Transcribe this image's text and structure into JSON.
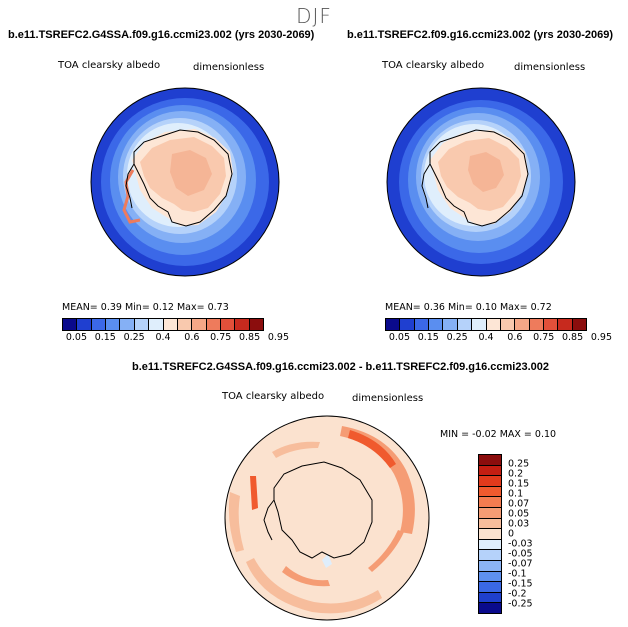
{
  "season": "DJF",
  "panels": [
    {
      "title": "b.e11.TSREFC2.G4SSA.f09.g16.ccmi23.002 (yrs 2030-2069)",
      "variable": "TOA clearsky albedo",
      "units": "dimensionless",
      "stats": "MEAN=   0.39  Min=   0.12  Max=   0.73"
    },
    {
      "title": "b.e11.TSREFC2.f09.g16.ccmi23.002 (yrs 2030-2069)",
      "variable": "TOA clearsky albedo",
      "units": "dimensionless",
      "stats": "MEAN=   0.36  Min=   0.10  Max=   0.72"
    }
  ],
  "colorbar_labels": [
    "0.05",
    "0.15",
    "0.25",
    "0.4",
    "0.6",
    "0.75",
    "0.85",
    "0.95"
  ],
  "colorbar_colors": [
    "#0a0a8c",
    "#1f3fd0",
    "#3b68e8",
    "#5a8ef0",
    "#85b0f5",
    "#b5d2fa",
    "#dfeefc",
    "#fde6d6",
    "#f9c9ae",
    "#f5a787",
    "#ee7b5c",
    "#e2503a",
    "#c72a1e",
    "#8b0d0d"
  ],
  "difference": {
    "title": "b.e11.TSREFC2.G4SSA.f09.g16.ccmi23.002 - b.e11.TSREFC2.f09.g16.ccmi23.002",
    "variable": "TOA clearsky albedo",
    "units": "dimensionless",
    "stats": "MIN =   -0.02  MAX =   0.10",
    "colorbar_labels": [
      "0.25",
      "0.2",
      "0.15",
      "0.1",
      "0.07",
      "0.05",
      "0.03",
      "0",
      "-0.03",
      "-0.05",
      "-0.07",
      "-0.1",
      "-0.15",
      "-0.2",
      "-0.25"
    ],
    "colorbar_colors": [
      "#8b0d0d",
      "#c41e12",
      "#e23a1c",
      "#f05a2e",
      "#f47c50",
      "#f59c74",
      "#f7bd9c",
      "#fbe2cf",
      "#dfeefc",
      "#b5d2fa",
      "#8bb4f5",
      "#5e90ee",
      "#3a68e5",
      "#1f40cc",
      "#0a0a8c"
    ]
  }
}
